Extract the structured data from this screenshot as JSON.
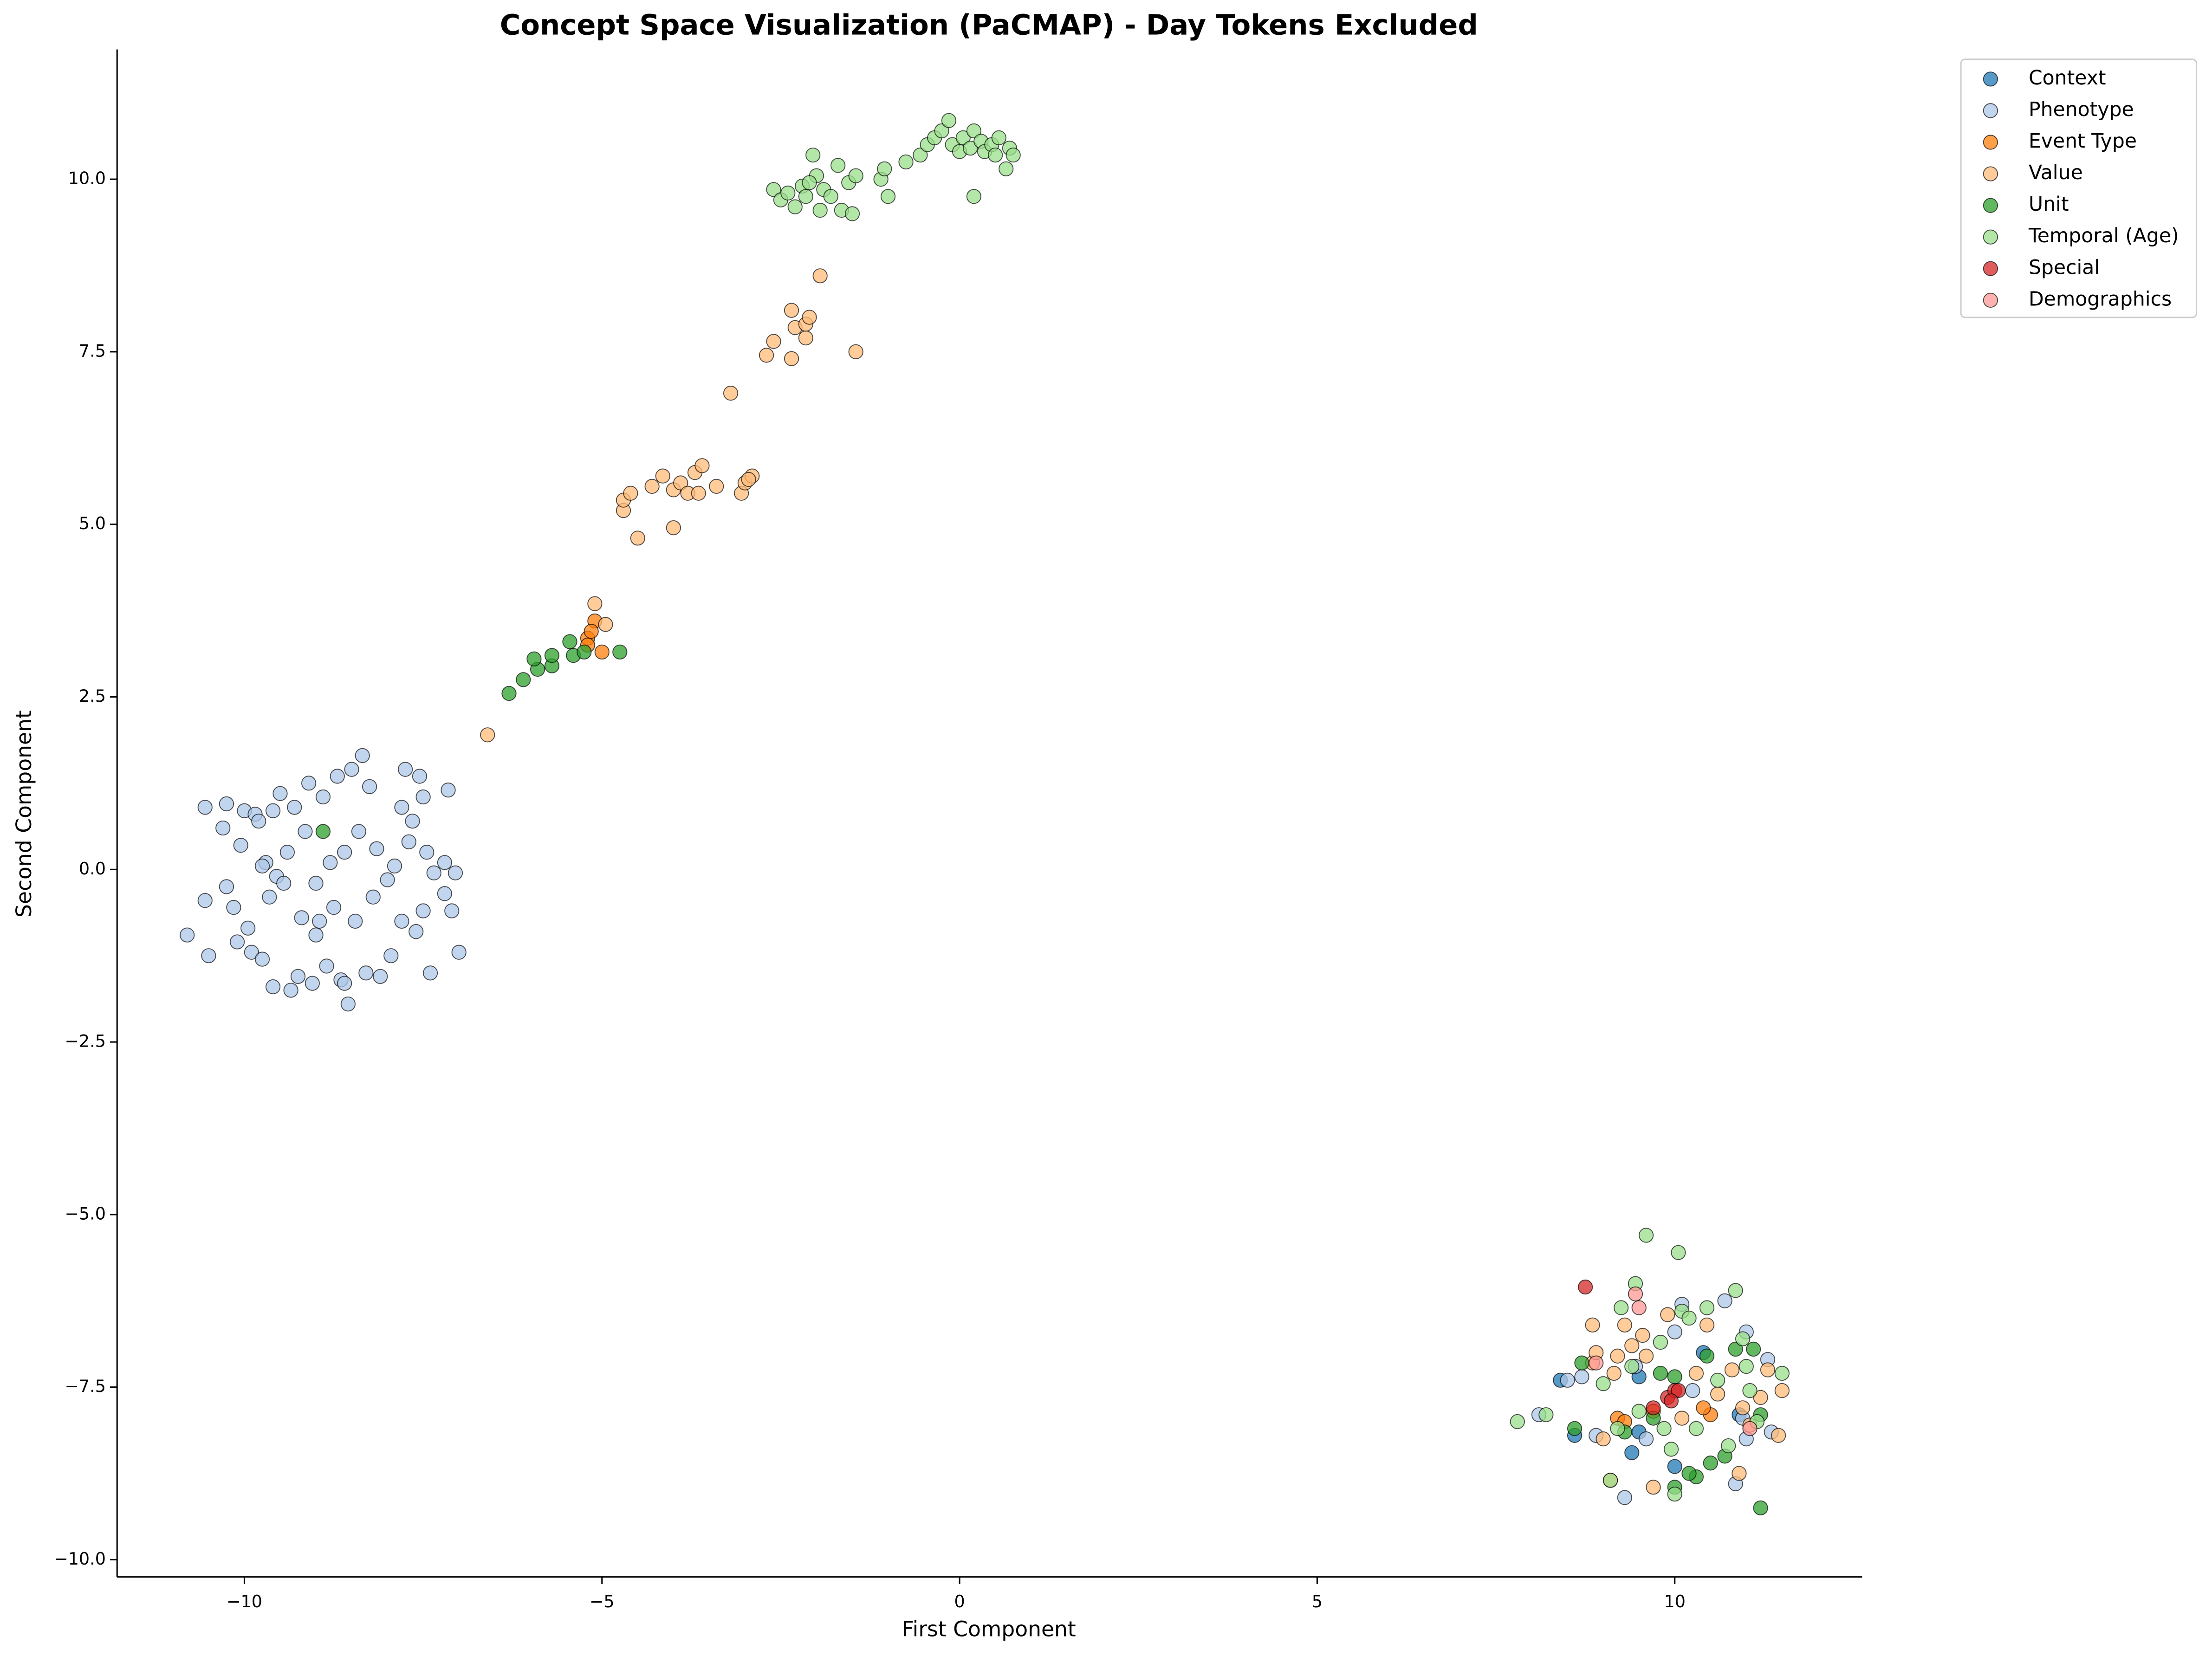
{
  "chart_data": {
    "type": "scatter",
    "title": "Concept Space Visualization (PaCMAP) - Day Tokens Excluded",
    "x_label": "First Component",
    "y_label": "Second Component",
    "xlim": [
      -11.78,
      12.62
    ],
    "ylim": [
      -10.25,
      11.88
    ],
    "xticks": [
      {
        "value": -10,
        "label": "−10"
      },
      {
        "value": -5,
        "label": "−5"
      },
      0,
      5,
      10
    ],
    "yticks": [
      {
        "value": -10,
        "label": "−10.0"
      },
      {
        "value": -7.5,
        "label": "−7.5"
      },
      {
        "value": -5,
        "label": "−5.0"
      },
      {
        "value": -2.5,
        "label": "−2.5"
      },
      {
        "value": 0,
        "label": "0.0"
      },
      2.5,
      {
        "value": 5,
        "label": "5.0"
      },
      7.5,
      {
        "value": 10,
        "label": "10.0"
      }
    ],
    "grid": false,
    "legend": "outside upper right",
    "series": [
      {
        "name": "Context",
        "color": "#1f77b4",
        "x": [
          8.4,
          8.6,
          9.5,
          9.4,
          10.0,
          9.5,
          10.4,
          10.9
        ],
        "values": [
          -7.4,
          -8.2,
          -7.35,
          -8.45,
          -8.65,
          -8.15,
          -7.0,
          -7.9
        ]
      },
      {
        "name": "Phenotype",
        "color": "#aec7e8",
        "x": [
          -10.8,
          -10.55,
          -10.55,
          -10.5,
          -10.25,
          -10.3,
          -10.25,
          -10.15,
          -10.1,
          -10.05,
          -10.0,
          -9.95,
          -9.9,
          -9.85,
          -9.8,
          -9.75,
          -9.7,
          -9.65,
          -9.6,
          -9.6,
          -9.55,
          -9.5,
          -9.45,
          -9.4,
          -9.3,
          -9.25,
          -9.2,
          -9.15,
          -9.1,
          -9.05,
          -9.0,
          -9.0,
          -8.9,
          -8.85,
          -8.8,
          -8.75,
          -8.7,
          -8.65,
          -8.6,
          -8.55,
          -8.5,
          -8.45,
          -8.4,
          -8.3,
          -8.25,
          -8.2,
          -8.15,
          -8.1,
          -8.0,
          -7.95,
          -7.9,
          -7.8,
          -7.8,
          -7.75,
          -7.7,
          -7.6,
          -7.55,
          -7.5,
          -7.5,
          -7.45,
          -7.4,
          -7.35,
          -7.2,
          -7.2,
          -7.15,
          -7.1,
          -7.05,
          -7.0,
          -8.35,
          -9.35,
          -8.95,
          -8.6,
          -7.65,
          -9.75,
          8.1,
          8.5,
          8.7,
          8.9,
          9.3,
          9.45,
          9.6,
          10.0,
          10.1,
          10.25,
          10.7,
          10.85,
          10.95,
          11.0,
          11.35,
          11.3,
          11.0
        ],
        "values": [
          -0.95,
          -0.45,
          0.9,
          -1.25,
          -0.25,
          0.6,
          0.95,
          -0.55,
          -1.05,
          0.35,
          0.85,
          -0.85,
          -1.2,
          0.8,
          0.7,
          -1.3,
          0.1,
          -0.4,
          -1.7,
          0.85,
          -0.1,
          1.1,
          -0.2,
          0.25,
          0.9,
          -1.55,
          -0.7,
          0.55,
          1.25,
          -1.65,
          -0.95,
          -0.2,
          1.05,
          -1.4,
          0.1,
          -0.55,
          1.35,
          -1.6,
          0.25,
          -1.95,
          1.45,
          -0.75,
          0.55,
          -1.5,
          1.2,
          -0.4,
          0.3,
          -1.55,
          -0.15,
          -1.25,
          0.05,
          0.9,
          -0.75,
          1.45,
          0.4,
          -0.9,
          1.35,
          -0.6,
          1.05,
          0.25,
          -1.5,
          -0.05,
          0.1,
          -0.35,
          1.15,
          -0.6,
          -0.05,
          -1.2,
          1.65,
          -1.75,
          -0.75,
          -1.65,
          0.7,
          0.05,
          -7.9,
          -7.4,
          -7.35,
          -8.2,
          -9.1,
          -7.2,
          -8.25,
          -6.7,
          -6.3,
          -7.55,
          -6.25,
          -8.9,
          -7.95,
          -8.25,
          -8.15,
          -7.1,
          -6.7
        ]
      },
      {
        "name": "Event Type",
        "color": "#ff7f0e",
        "x": [
          -5.1,
          -5.2,
          -5.15,
          -5.0,
          -5.2,
          9.2,
          9.3,
          10.5,
          10.4,
          9.7
        ],
        "values": [
          3.6,
          3.35,
          3.45,
          3.15,
          3.25,
          -7.95,
          -8.0,
          -7.9,
          -7.8,
          -7.85
        ]
      },
      {
        "name": "Value",
        "color": "#ffbb78",
        "x": [
          -6.6,
          -5.1,
          -4.95,
          -4.5,
          -4.0,
          -4.7,
          -4.7,
          -4.6,
          -4.3,
          -4.15,
          -4.0,
          -3.9,
          -3.8,
          -3.7,
          -3.6,
          -3.65,
          -3.4,
          -3.05,
          -3.0,
          -2.9,
          -2.95,
          -3.2,
          -2.7,
          -2.6,
          -2.35,
          -2.3,
          -2.35,
          -2.15,
          -2.15,
          -2.1,
          -1.45,
          -1.95,
          8.85,
          8.85,
          8.9,
          9.1,
          9.15,
          9.2,
          9.3,
          9.4,
          9.55,
          9.6,
          9.7,
          9.9,
          10.1,
          10.3,
          10.45,
          10.6,
          10.8,
          10.9,
          10.95,
          11.05,
          11.2,
          11.3,
          11.45,
          11.5,
          9.0
        ],
        "values": [
          1.95,
          3.85,
          3.55,
          4.8,
          4.95,
          5.2,
          5.35,
          5.45,
          5.55,
          5.7,
          5.5,
          5.6,
          5.45,
          5.75,
          5.85,
          5.45,
          5.55,
          5.45,
          5.6,
          5.7,
          5.65,
          6.9,
          7.45,
          7.65,
          7.4,
          7.85,
          8.1,
          7.7,
          7.9,
          8.0,
          7.5,
          8.6,
          -6.6,
          -7.15,
          -7.0,
          -8.85,
          -7.3,
          -7.05,
          -6.6,
          -6.9,
          -6.75,
          -7.05,
          -8.95,
          -6.45,
          -7.95,
          -7.3,
          -6.6,
          -7.6,
          -7.25,
          -8.75,
          -7.8,
          -8.05,
          -7.65,
          -7.25,
          -8.2,
          -7.55,
          -8.25
        ]
      },
      {
        "name": "Unit",
        "color": "#2ca02c",
        "x": [
          -6.3,
          -6.1,
          -5.9,
          -5.95,
          -5.7,
          -5.7,
          -5.45,
          -5.4,
          -5.25,
          -4.75,
          -8.9,
          8.7,
          8.6,
          9.3,
          9.8,
          10.0,
          10.0,
          10.3,
          10.45,
          10.5,
          10.7,
          10.85,
          11.1,
          11.2,
          11.2,
          10.2,
          9.7
        ],
        "values": [
          2.55,
          2.75,
          2.9,
          3.05,
          2.95,
          3.1,
          3.3,
          3.1,
          3.15,
          3.15,
          0.55,
          -7.15,
          -8.1,
          -8.15,
          -7.3,
          -7.35,
          -8.95,
          -8.8,
          -7.05,
          -8.6,
          -8.5,
          -6.95,
          -6.95,
          -7.9,
          -9.25,
          -8.75,
          -7.95
        ]
      },
      {
        "name": "Temporal (Age)",
        "color": "#98df8a",
        "x": [
          -2.6,
          -2.5,
          -2.4,
          -2.3,
          -2.2,
          -2.15,
          -2.05,
          -2.0,
          -1.95,
          -1.9,
          -1.8,
          -1.7,
          -1.65,
          -1.55,
          -1.5,
          -1.45,
          -1.1,
          -1.05,
          -1.0,
          -0.75,
          -0.55,
          -0.45,
          -0.35,
          -0.25,
          -0.15,
          -0.1,
          0.0,
          0.05,
          0.15,
          0.2,
          0.3,
          0.35,
          0.45,
          0.5,
          0.55,
          0.65,
          0.7,
          0.75,
          0.2,
          -2.1,
          7.8,
          8.2,
          9.0,
          9.1,
          9.25,
          9.4,
          9.45,
          9.6,
          9.8,
          9.85,
          9.95,
          10.05,
          10.1,
          10.2,
          10.3,
          10.45,
          10.6,
          10.75,
          10.85,
          10.95,
          11.05,
          11.15,
          11.5,
          9.5,
          10.0,
          11.0,
          9.2
        ],
        "values": [
          9.85,
          9.7,
          9.8,
          9.6,
          9.9,
          9.75,
          10.35,
          10.05,
          9.55,
          9.85,
          9.75,
          10.2,
          9.55,
          9.95,
          9.5,
          10.05,
          10.0,
          10.15,
          9.75,
          10.25,
          10.35,
          10.5,
          10.6,
          10.7,
          10.85,
          10.5,
          10.4,
          10.6,
          10.45,
          10.7,
          10.55,
          10.4,
          10.5,
          10.35,
          10.6,
          10.15,
          10.45,
          10.35,
          9.75,
          9.95,
          -8.0,
          -7.9,
          -7.45,
          -8.85,
          -6.35,
          -7.2,
          -6.0,
          -5.3,
          -6.85,
          -8.1,
          -8.4,
          -5.55,
          -6.4,
          -6.5,
          -8.1,
          -6.35,
          -7.4,
          -8.35,
          -6.1,
          -6.8,
          -7.55,
          -8.0,
          -7.3,
          -7.85,
          -9.05,
          -7.2,
          -8.1
        ]
      },
      {
        "name": "Special",
        "color": "#d62728",
        "x": [
          8.75,
          9.7,
          9.9,
          10.0,
          10.05,
          9.95
        ],
        "values": [
          -6.05,
          -7.8,
          -7.65,
          -7.55,
          -7.55,
          -7.7
        ]
      },
      {
        "name": "Demographics",
        "color": "#ff9896",
        "x": [
          9.45,
          9.5,
          8.9,
          11.05
        ],
        "values": [
          -6.15,
          -6.35,
          -7.15,
          -8.1
        ]
      }
    ]
  }
}
